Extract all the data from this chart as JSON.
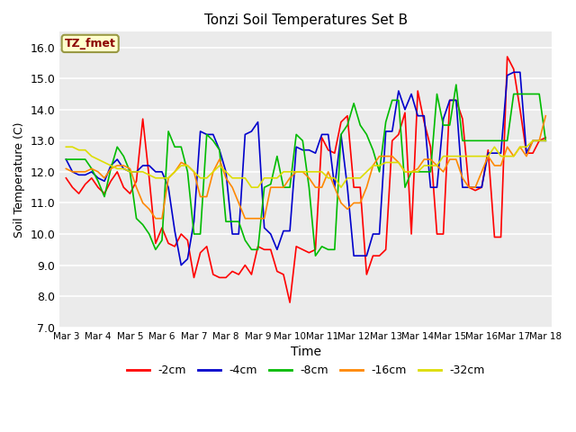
{
  "title": "Tonzi Soil Temperatures Set B",
  "xlabel": "Time",
  "ylabel": "Soil Temperature (C)",
  "ylim": [
    7.0,
    16.5
  ],
  "yticks": [
    7.0,
    8.0,
    9.0,
    10.0,
    11.0,
    12.0,
    13.0,
    14.0,
    15.0,
    16.0
  ],
  "xtick_labels": [
    "Mar 3",
    "Mar 4",
    "Mar 5",
    "Mar 6",
    "Mar 7",
    "Mar 8",
    "Mar 9",
    "Mar 10",
    "Mar 11",
    "Mar 12",
    "Mar 13",
    "Mar 14",
    "Mar 15",
    "Mar 16",
    "Mar 17",
    "Mar 18"
  ],
  "annotation_text": "TZ_fmet",
  "annotation_color": "#8B0000",
  "annotation_bg": "#FFFFCC",
  "annotation_edge": "#999944",
  "line_colors": {
    "-2cm": "#FF0000",
    "-4cm": "#0000CC",
    "-8cm": "#00BB00",
    "-16cm": "#FF8800",
    "-32cm": "#DDDD00"
  },
  "bg_color": "#E8E8E8",
  "plot_bg": "#EBEBEB",
  "t_2cm": [
    11.8,
    11.5,
    11.3,
    11.6,
    11.8,
    11.5,
    11.3,
    11.7,
    12.0,
    11.5,
    11.3,
    11.7,
    13.7,
    11.8,
    9.7,
    10.2,
    9.7,
    9.6,
    10.0,
    9.8,
    8.6,
    9.4,
    9.6,
    8.7,
    8.6,
    8.6,
    8.8,
    8.7,
    9.0,
    8.7,
    9.6,
    9.5,
    9.5,
    8.8,
    8.7,
    7.8,
    9.6,
    9.5,
    9.4,
    9.5,
    13.1,
    12.7,
    12.6,
    13.6,
    13.8,
    11.5,
    11.5,
    8.7,
    9.3,
    9.3,
    9.5,
    13.0,
    13.2,
    13.9,
    10.0,
    14.6,
    13.6,
    12.8,
    10.0,
    10.0,
    14.3,
    14.3,
    13.7,
    11.5,
    11.4,
    11.5,
    12.7,
    9.9,
    9.9,
    15.7,
    15.3,
    14.0,
    12.6,
    12.6,
    13.0,
    13.1
  ],
  "t_4cm": [
    12.4,
    12.0,
    11.9,
    11.9,
    12.0,
    11.8,
    11.7,
    12.2,
    12.4,
    12.1,
    12.0,
    12.0,
    12.2,
    12.2,
    12.0,
    12.0,
    11.5,
    10.1,
    9.0,
    9.2,
    10.4,
    13.3,
    13.2,
    13.2,
    12.7,
    12.0,
    10.0,
    10.0,
    13.2,
    13.3,
    13.6,
    10.2,
    10.0,
    9.5,
    10.1,
    10.1,
    12.8,
    12.7,
    12.7,
    12.6,
    13.2,
    13.2,
    11.5,
    13.2,
    11.5,
    9.3,
    9.3,
    9.3,
    10.0,
    10.0,
    13.3,
    13.3,
    14.6,
    14.0,
    14.5,
    13.8,
    13.8,
    11.5,
    11.5,
    13.7,
    14.3,
    14.3,
    11.5,
    11.5,
    11.5,
    11.5,
    12.6,
    12.6,
    12.6,
    15.1,
    15.2,
    15.2,
    12.6,
    13.0,
    13.0,
    13.0
  ],
  "t_8cm": [
    12.4,
    12.4,
    12.4,
    12.4,
    12.1,
    11.7,
    11.2,
    12.1,
    12.8,
    12.5,
    12.0,
    10.5,
    10.3,
    10.0,
    9.5,
    9.8,
    13.3,
    12.8,
    12.8,
    12.0,
    10.0,
    10.0,
    13.2,
    13.0,
    12.7,
    10.4,
    10.4,
    10.4,
    9.8,
    9.5,
    9.5,
    11.5,
    11.6,
    12.5,
    11.5,
    11.5,
    13.2,
    13.0,
    11.5,
    9.3,
    9.6,
    9.5,
    9.5,
    13.2,
    13.5,
    14.2,
    13.5,
    13.2,
    12.7,
    12.0,
    13.6,
    14.3,
    14.3,
    11.5,
    12.0,
    12.0,
    12.0,
    12.0,
    14.5,
    13.5,
    13.5,
    14.8,
    13.0,
    13.0,
    13.0,
    13.0,
    13.0,
    13.0,
    13.0,
    13.0,
    14.5,
    14.5,
    14.5,
    14.5,
    14.5,
    13.0
  ],
  "t_16cm": [
    12.1,
    12.0,
    12.0,
    12.0,
    12.1,
    12.0,
    11.8,
    12.1,
    12.2,
    12.2,
    12.1,
    11.5,
    11.0,
    10.8,
    10.5,
    10.5,
    11.8,
    12.0,
    12.3,
    12.2,
    12.0,
    11.2,
    11.2,
    12.0,
    12.4,
    11.8,
    11.5,
    11.0,
    10.5,
    10.5,
    10.5,
    10.5,
    11.5,
    11.5,
    11.5,
    11.8,
    12.0,
    12.0,
    11.8,
    11.5,
    11.5,
    12.0,
    11.5,
    11.0,
    10.8,
    11.0,
    11.0,
    11.5,
    12.2,
    12.5,
    12.5,
    12.5,
    12.3,
    12.0,
    12.0,
    12.1,
    12.4,
    12.4,
    12.2,
    12.0,
    12.4,
    12.4,
    11.8,
    11.5,
    11.5,
    12.0,
    12.5,
    12.2,
    12.2,
    12.8,
    12.5,
    12.8,
    12.5,
    13.0,
    13.0,
    13.8
  ],
  "t_32cm": [
    12.8,
    12.8,
    12.7,
    12.7,
    12.5,
    12.4,
    12.3,
    12.2,
    12.1,
    12.1,
    12.0,
    12.0,
    12.0,
    11.9,
    11.8,
    11.8,
    11.8,
    12.0,
    12.2,
    12.2,
    12.0,
    11.8,
    11.8,
    12.0,
    12.2,
    12.0,
    11.8,
    11.8,
    11.8,
    11.5,
    11.5,
    11.8,
    11.8,
    11.8,
    12.0,
    12.0,
    12.0,
    12.0,
    12.0,
    12.0,
    12.0,
    11.8,
    11.8,
    11.5,
    11.8,
    11.8,
    11.8,
    12.0,
    12.2,
    12.2,
    12.3,
    12.3,
    12.3,
    12.0,
    12.0,
    12.0,
    12.2,
    12.2,
    12.2,
    12.5,
    12.5,
    12.5,
    12.5,
    12.5,
    12.5,
    12.5,
    12.5,
    12.8,
    12.5,
    12.5,
    12.5,
    12.8,
    12.8,
    13.0,
    13.0,
    13.0
  ]
}
